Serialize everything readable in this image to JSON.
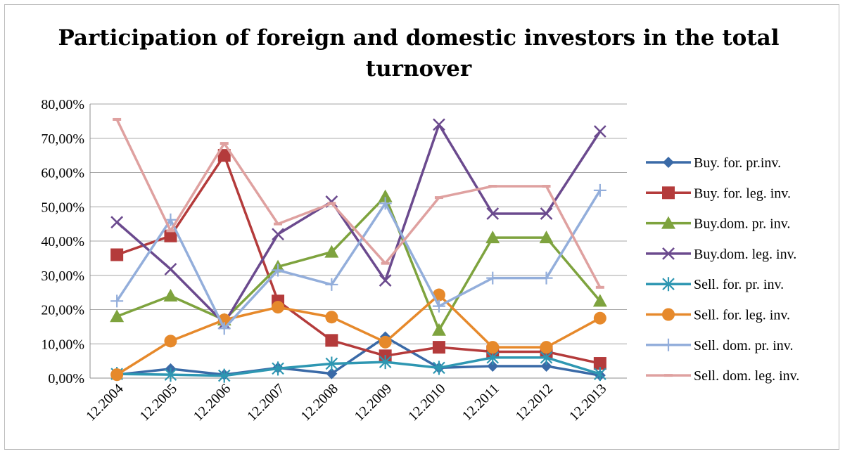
{
  "chart_data": {
    "type": "line",
    "title": "Participation of foreign and domestic investors in the total turnover",
    "xlabel": "",
    "ylabel": "",
    "categories": [
      "12.2004",
      "12.2005",
      "12.2006",
      "12.2007",
      "12.2008",
      "12.2009",
      "12.2010",
      "12.2011",
      "12.2012",
      "12.2013"
    ],
    "y_ticks": [
      "0,00%",
      "10,00%",
      "20,00%",
      "30,00%",
      "40,00%",
      "50,00%",
      "60,00%",
      "70,00%",
      "80,00%"
    ],
    "ylim": [
      0,
      0.8
    ],
    "grid": true,
    "legend_position": "right",
    "series": [
      {
        "name": "Buy. for. pr.inv.",
        "color": "#3a6aa7",
        "marker": "diamond",
        "values": [
          0.01,
          0.027,
          0.01,
          0.03,
          0.013,
          0.12,
          0.03,
          0.035,
          0.035,
          0.008
        ]
      },
      {
        "name": "Buy. for. leg. inv.",
        "color": "#b43b3b",
        "marker": "square",
        "values": [
          0.36,
          0.415,
          0.65,
          0.225,
          0.11,
          0.065,
          0.09,
          0.077,
          0.077,
          0.043
        ]
      },
      {
        "name": "Buy.dom. pr. inv.",
        "color": "#7ea33e",
        "marker": "triangle",
        "values": [
          0.18,
          0.24,
          0.17,
          0.325,
          0.368,
          0.53,
          0.14,
          0.41,
          0.41,
          0.225
        ]
      },
      {
        "name": "Buy.dom. leg. inv.",
        "color": "#6b4a8e",
        "marker": "x",
        "values": [
          0.455,
          0.318,
          0.16,
          0.42,
          0.515,
          0.285,
          0.74,
          0.48,
          0.48,
          0.72
        ]
      },
      {
        "name": "Sell. for. pr. inv.",
        "color": "#2e97b2",
        "marker": "star",
        "values": [
          0.012,
          0.01,
          0.007,
          0.028,
          0.042,
          0.047,
          0.03,
          0.06,
          0.06,
          0.012
        ]
      },
      {
        "name": "Sell. for. leg. inv.",
        "color": "#e6892b",
        "marker": "circle",
        "values": [
          0.01,
          0.108,
          0.17,
          0.207,
          0.178,
          0.105,
          0.243,
          0.09,
          0.09,
          0.175
        ]
      },
      {
        "name": "Sell. dom. pr. inv.",
        "color": "#93aedb",
        "marker": "plus",
        "values": [
          0.225,
          0.462,
          0.145,
          0.315,
          0.273,
          0.51,
          0.21,
          0.292,
          0.292,
          0.548
        ]
      },
      {
        "name": "Sell. dom. leg. inv.",
        "color": "#dfa1a0",
        "marker": "dash",
        "values": [
          0.755,
          0.43,
          0.685,
          0.45,
          0.51,
          0.335,
          0.527,
          0.56,
          0.56,
          0.265
        ]
      }
    ]
  }
}
